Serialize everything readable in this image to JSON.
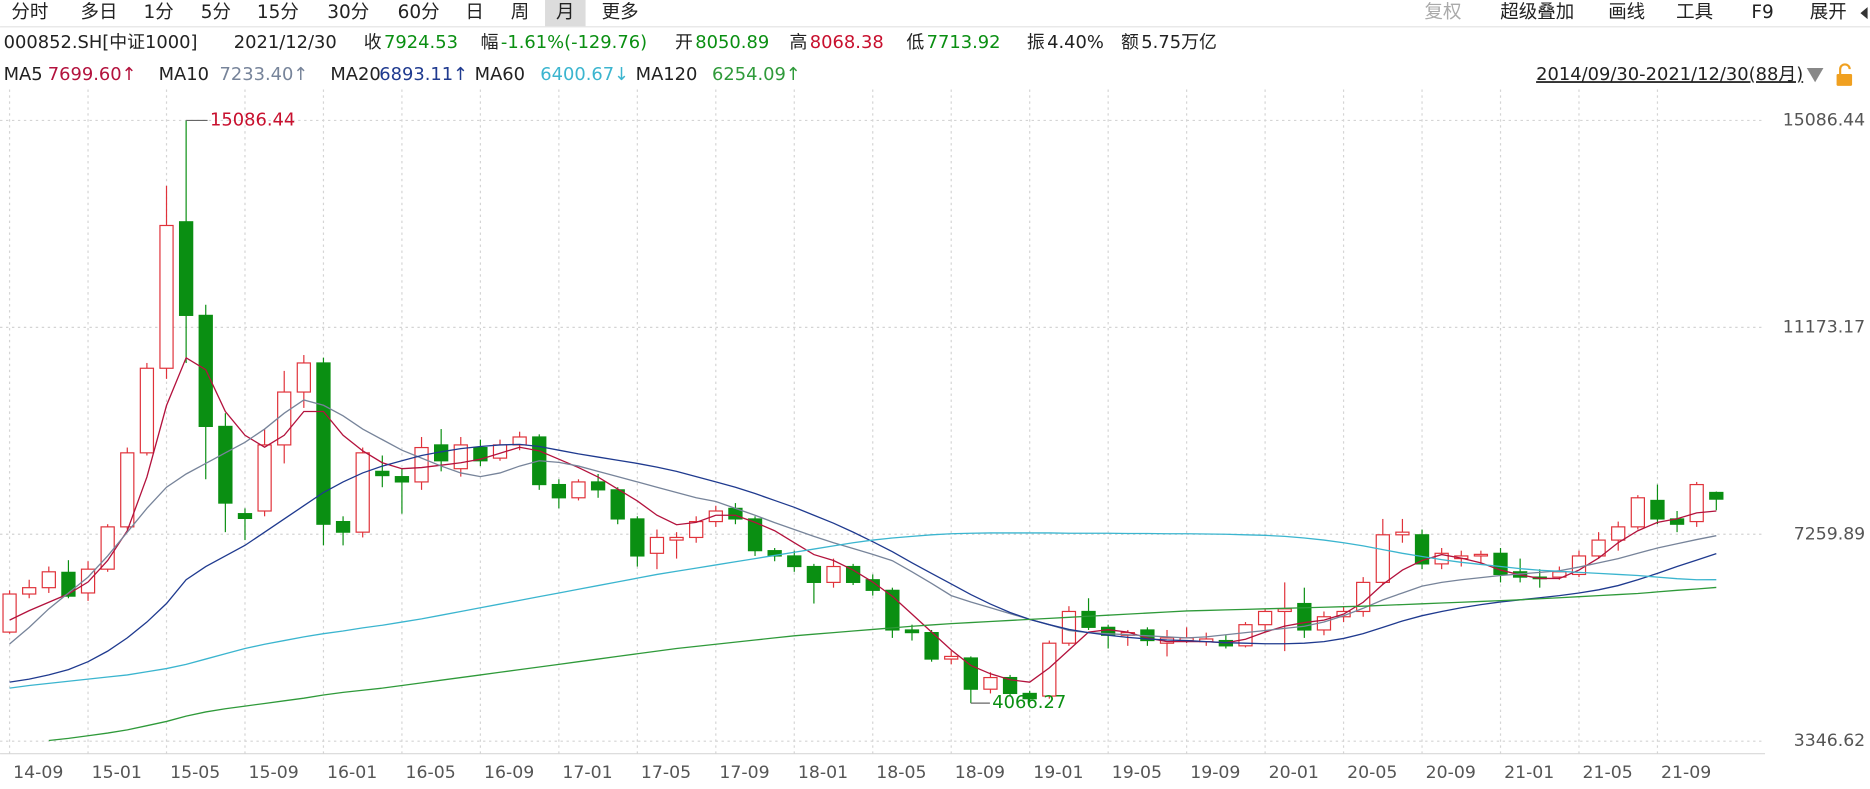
{
  "toolbar": {
    "left": [
      "分时",
      "多日",
      "1分",
      "5分",
      "15分",
      "30分",
      "60分",
      "日",
      "周",
      "月",
      "更多"
    ],
    "selected": "月",
    "right": [
      "复权",
      "超级叠加",
      "画线",
      "工具",
      "F9",
      "展开"
    ],
    "disabled": "复权"
  },
  "info": {
    "code": "000852.SH[中证1000]",
    "date": "2021/12/30",
    "close_label": "收",
    "change_label": "幅",
    "change": "-1.61%(-129.76)",
    "open_label": "开",
    "high_label": "高",
    "low_label": "低",
    "amplitude_label": "振",
    "amplitude": "4.40%",
    "amount_label": "额",
    "amount": "5.75万亿"
  },
  "range_label": "2014/09/30-2021/12/30(88月)",
  "chart_data": {
    "type": "candlestick",
    "up_color": "#e0323a",
    "down_color": "#0a8f12",
    "grid": true,
    "categories": [
      "14-09",
      null,
      null,
      null,
      "15-01",
      null,
      null,
      null,
      "15-05",
      null,
      null,
      null,
      "15-09",
      null,
      null,
      null,
      "16-01",
      null,
      null,
      null,
      "16-05",
      null,
      null,
      null,
      "16-09",
      null,
      null,
      null,
      "17-01",
      null,
      null,
      null,
      "17-05",
      null,
      null,
      null,
      "17-09",
      null,
      null,
      null,
      "18-01",
      null,
      null,
      null,
      "18-05",
      null,
      null,
      null,
      "18-09",
      null,
      null,
      null,
      "19-01",
      null,
      null,
      null,
      "19-05",
      null,
      null,
      null,
      "19-09",
      null,
      null,
      null,
      "20-01",
      null,
      null,
      null,
      "20-05",
      null,
      null,
      null,
      "20-09",
      null,
      null,
      null,
      "21-01",
      null,
      null,
      null,
      "21-05",
      null,
      null,
      null,
      "21-09",
      null,
      null,
      null
    ],
    "candles": {
      "open": [
        5410,
        6130,
        6250,
        6540,
        6150,
        6600,
        7400,
        8800,
        10400,
        13170,
        11400,
        9300,
        7650,
        7700,
        8950,
        9950,
        10500,
        7500,
        7300,
        8450,
        8350,
        8250,
        8950,
        8500,
        8900,
        8700,
        8950,
        9100,
        8200,
        7950,
        8250,
        8100,
        7550,
        6900,
        7150,
        7200,
        7500,
        7750,
        7550,
        6950,
        6850,
        6650,
        6350,
        6650,
        6400,
        6200,
        5450,
        5400,
        4900,
        4920,
        4330,
        4550,
        4250,
        4200,
        5200,
        5800,
        5500,
        5350,
        5450,
        5200,
        5250,
        5230,
        5250,
        5150,
        5550,
        5800,
        5950,
        5450,
        5700,
        5800,
        6350,
        7250,
        7250,
        6700,
        6800,
        6850,
        6900,
        6550,
        6450,
        6450,
        6500,
        6850,
        7150,
        7400,
        7900,
        7550,
        7500,
        8050.89
      ],
      "high": [
        6200,
        6400,
        6650,
        6770,
        6750,
        7450,
        8900,
        10500,
        13850,
        15086.44,
        11600,
        9550,
        7750,
        9250,
        10350,
        10650,
        10600,
        7600,
        8900,
        8750,
        8500,
        9100,
        9250,
        9100,
        9050,
        9050,
        9200,
        9150,
        8300,
        8300,
        8400,
        8150,
        7600,
        7350,
        7300,
        7600,
        7800,
        7850,
        7600,
        7000,
        6950,
        6700,
        6800,
        6700,
        6500,
        6250,
        5550,
        5450,
        5050,
        4950,
        4650,
        4600,
        4300,
        5250,
        5900,
        6050,
        5550,
        5450,
        5500,
        5450,
        5500,
        5400,
        5350,
        5600,
        5850,
        6350,
        6250,
        5800,
        5900,
        6450,
        7550,
        7550,
        7350,
        7000,
        6950,
        6950,
        7000,
        6800,
        6600,
        6650,
        6950,
        7300,
        7500,
        8000,
        8200,
        7700,
        8250,
        8068.38
      ],
      "low": [
        5380,
        6050,
        6150,
        6050,
        6000,
        6550,
        7350,
        8750,
        10200,
        10500,
        8300,
        7300,
        7150,
        7600,
        8600,
        9650,
        7050,
        7050,
        7200,
        8150,
        7650,
        8100,
        8450,
        8350,
        8550,
        8650,
        8850,
        8100,
        7750,
        7900,
        7950,
        7450,
        6650,
        6600,
        6800,
        7100,
        7400,
        7450,
        6850,
        6750,
        6550,
        5950,
        6250,
        6300,
        6100,
        5300,
        5250,
        4850,
        4800,
        4066.27,
        4250,
        4200,
        4100,
        4150,
        5150,
        5450,
        5100,
        5150,
        5150,
        4950,
        5200,
        5150,
        5100,
        5120,
        5400,
        5050,
        5300,
        5350,
        5600,
        5700,
        6300,
        7100,
        6600,
        6600,
        6650,
        6700,
        6350,
        6350,
        6250,
        6400,
        6450,
        6800,
        6950,
        7350,
        7450,
        7300,
        7400,
        7713.92
      ],
      "close": [
        6130,
        6250,
        6550,
        6090,
        6600,
        7400,
        8800,
        10400,
        13100,
        11400,
        9300,
        7850,
        7560,
        8950,
        9950,
        10500,
        7450,
        7300,
        8800,
        8370,
        8250,
        8900,
        8650,
        8950,
        8650,
        8950,
        9100,
        8200,
        7950,
        8250,
        8100,
        7550,
        6850,
        7200,
        7200,
        7500,
        7700,
        7550,
        6950,
        6850,
        6650,
        6350,
        6650,
        6350,
        6200,
        5450,
        5400,
        4900,
        4950,
        4330,
        4550,
        4250,
        4150,
        5200,
        5800,
        5500,
        5350,
        5400,
        5250,
        5300,
        5300,
        5280,
        5150,
        5550,
        5800,
        5850,
        5450,
        5700,
        5800,
        6350,
        7250,
        7300,
        6700,
        6900,
        6850,
        6880,
        6500,
        6450,
        6420,
        6550,
        6850,
        7150,
        7400,
        7950,
        7550,
        7450,
        8200,
        7924.53
      ]
    },
    "ma": [
      {
        "name": "MA5",
        "color": "#b3123d",
        "last_value_label": "7699.60↑",
        "values": [
          5636,
          5816,
          5974,
          6132,
          6357,
          6764,
          7327,
          8342,
          9695,
          10598,
          10372,
          9582,
          9132,
          8906,
          9132,
          9582,
          9582,
          9132,
          8838,
          8613,
          8500,
          8522,
          8567,
          8613,
          8680,
          8793,
          8906,
          8838,
          8680,
          8522,
          8342,
          8116,
          7891,
          7620,
          7440,
          7485,
          7620,
          7620,
          7485,
          7327,
          7102,
          6876,
          6764,
          6583,
          6357,
          6087,
          5749,
          5410,
          5072,
          4779,
          4621,
          4508,
          4463,
          4733,
          5072,
          5410,
          5455,
          5410,
          5298,
          5230,
          5230,
          5230,
          5207,
          5275,
          5410,
          5523,
          5590,
          5636,
          5749,
          5974,
          6312,
          6583,
          6764,
          6876,
          6809,
          6719,
          6583,
          6493,
          6425,
          6425,
          6583,
          6809,
          7102,
          7327,
          7485,
          7553,
          7665,
          7699.6
        ]
      },
      {
        "name": "MA10",
        "color": "#77849a",
        "last_value_label": "7233.40↑",
        "values": [
          5185,
          5500,
          5850,
          6150,
          6450,
          6850,
          7300,
          7750,
          8150,
          8400,
          8600,
          8800,
          9000,
          9250,
          9550,
          9800,
          9700,
          9500,
          9250,
          9050,
          8850,
          8700,
          8550,
          8420,
          8350,
          8420,
          8550,
          8650,
          8620,
          8550,
          8450,
          8350,
          8250,
          8150,
          8050,
          7950,
          7880,
          7750,
          7620,
          7480,
          7350,
          7220,
          7100,
          6990,
          6880,
          6760,
          6550,
          6330,
          6100,
          5980,
          5870,
          5760,
          5650,
          5550,
          5440,
          5400,
          5380,
          5360,
          5340,
          5320,
          5300,
          5320,
          5360,
          5400,
          5440,
          5480,
          5520,
          5600,
          5720,
          5860,
          6020,
          6150,
          6280,
          6350,
          6400,
          6440,
          6480,
          6510,
          6540,
          6570,
          6640,
          6720,
          6800,
          6900,
          7000,
          7080,
          7160,
          7233.4
        ]
      },
      {
        "name": "MA20",
        "color": "#1f3a8f",
        "last_value_label": "6893.11↑",
        "values": [
          4463,
          4520,
          4600,
          4700,
          4850,
          5050,
          5300,
          5600,
          5950,
          6400,
          6650,
          6850,
          7050,
          7300,
          7550,
          7800,
          8050,
          8250,
          8420,
          8550,
          8650,
          8750,
          8820,
          8880,
          8920,
          8950,
          8960,
          8920,
          8850,
          8780,
          8720,
          8660,
          8600,
          8530,
          8450,
          8350,
          8250,
          8150,
          8030,
          7900,
          7770,
          7620,
          7470,
          7300,
          7120,
          6930,
          6720,
          6520,
          6320,
          6120,
          5940,
          5780,
          5650,
          5550,
          5460,
          5400,
          5350,
          5310,
          5280,
          5260,
          5250,
          5230,
          5210,
          5200,
          5190,
          5190,
          5200,
          5230,
          5290,
          5380,
          5500,
          5620,
          5720,
          5800,
          5870,
          5930,
          5980,
          6020,
          6060,
          6100,
          6150,
          6210,
          6290,
          6400,
          6520,
          6650,
          6770,
          6893.11
        ]
      },
      {
        "name": "MA60",
        "color": "#3bb5cf",
        "last_value_label": "6400.67↓",
        "values": [
          4350,
          4400,
          4440,
          4480,
          4520,
          4560,
          4600,
          4660,
          4720,
          4800,
          4900,
          5000,
          5100,
          5180,
          5250,
          5320,
          5380,
          5430,
          5490,
          5540,
          5600,
          5660,
          5730,
          5800,
          5870,
          5940,
          6010,
          6080,
          6150,
          6220,
          6290,
          6360,
          6430,
          6500,
          6560,
          6620,
          6680,
          6740,
          6800,
          6860,
          6920,
          6980,
          7040,
          7100,
          7150,
          7190,
          7220,
          7250,
          7270,
          7280,
          7285,
          7285,
          7285,
          7285,
          7280,
          7280,
          7280,
          7275,
          7275,
          7270,
          7270,
          7265,
          7260,
          7250,
          7240,
          7220,
          7190,
          7150,
          7100,
          7040,
          6970,
          6900,
          6840,
          6780,
          6730,
          6690,
          6650,
          6610,
          6580,
          6560,
          6540,
          6520,
          6500,
          6480,
          6450,
          6420,
          6400,
          6400.67
        ]
      },
      {
        "name": "MA120",
        "color": "#2f9a3a",
        "last_value_label": "6254.09↑",
        "values": [
          null,
          null,
          3360,
          3400,
          3450,
          3500,
          3560,
          3640,
          3720,
          3820,
          3900,
          3960,
          4010,
          4060,
          4110,
          4160,
          4220,
          4270,
          4310,
          4350,
          4400,
          4450,
          4500,
          4550,
          4600,
          4650,
          4700,
          4750,
          4800,
          4850,
          4900,
          4950,
          5000,
          5050,
          5100,
          5140,
          5180,
          5220,
          5260,
          5300,
          5340,
          5370,
          5400,
          5430,
          5460,
          5490,
          5520,
          5545,
          5570,
          5590,
          5610,
          5630,
          5650,
          5670,
          5690,
          5710,
          5730,
          5750,
          5770,
          5790,
          5810,
          5820,
          5830,
          5840,
          5850,
          5860,
          5870,
          5880,
          5890,
          5900,
          5915,
          5930,
          5945,
          5960,
          5975,
          5990,
          6005,
          6020,
          6040,
          6060,
          6080,
          6100,
          6120,
          6140,
          6170,
          6200,
          6225,
          6254.09
        ]
      }
    ],
    "ylim": [
      3110,
      15673
    ],
    "yticks": [
      15086.44,
      11173.17,
      7259.89,
      3346.62
    ]
  }
}
